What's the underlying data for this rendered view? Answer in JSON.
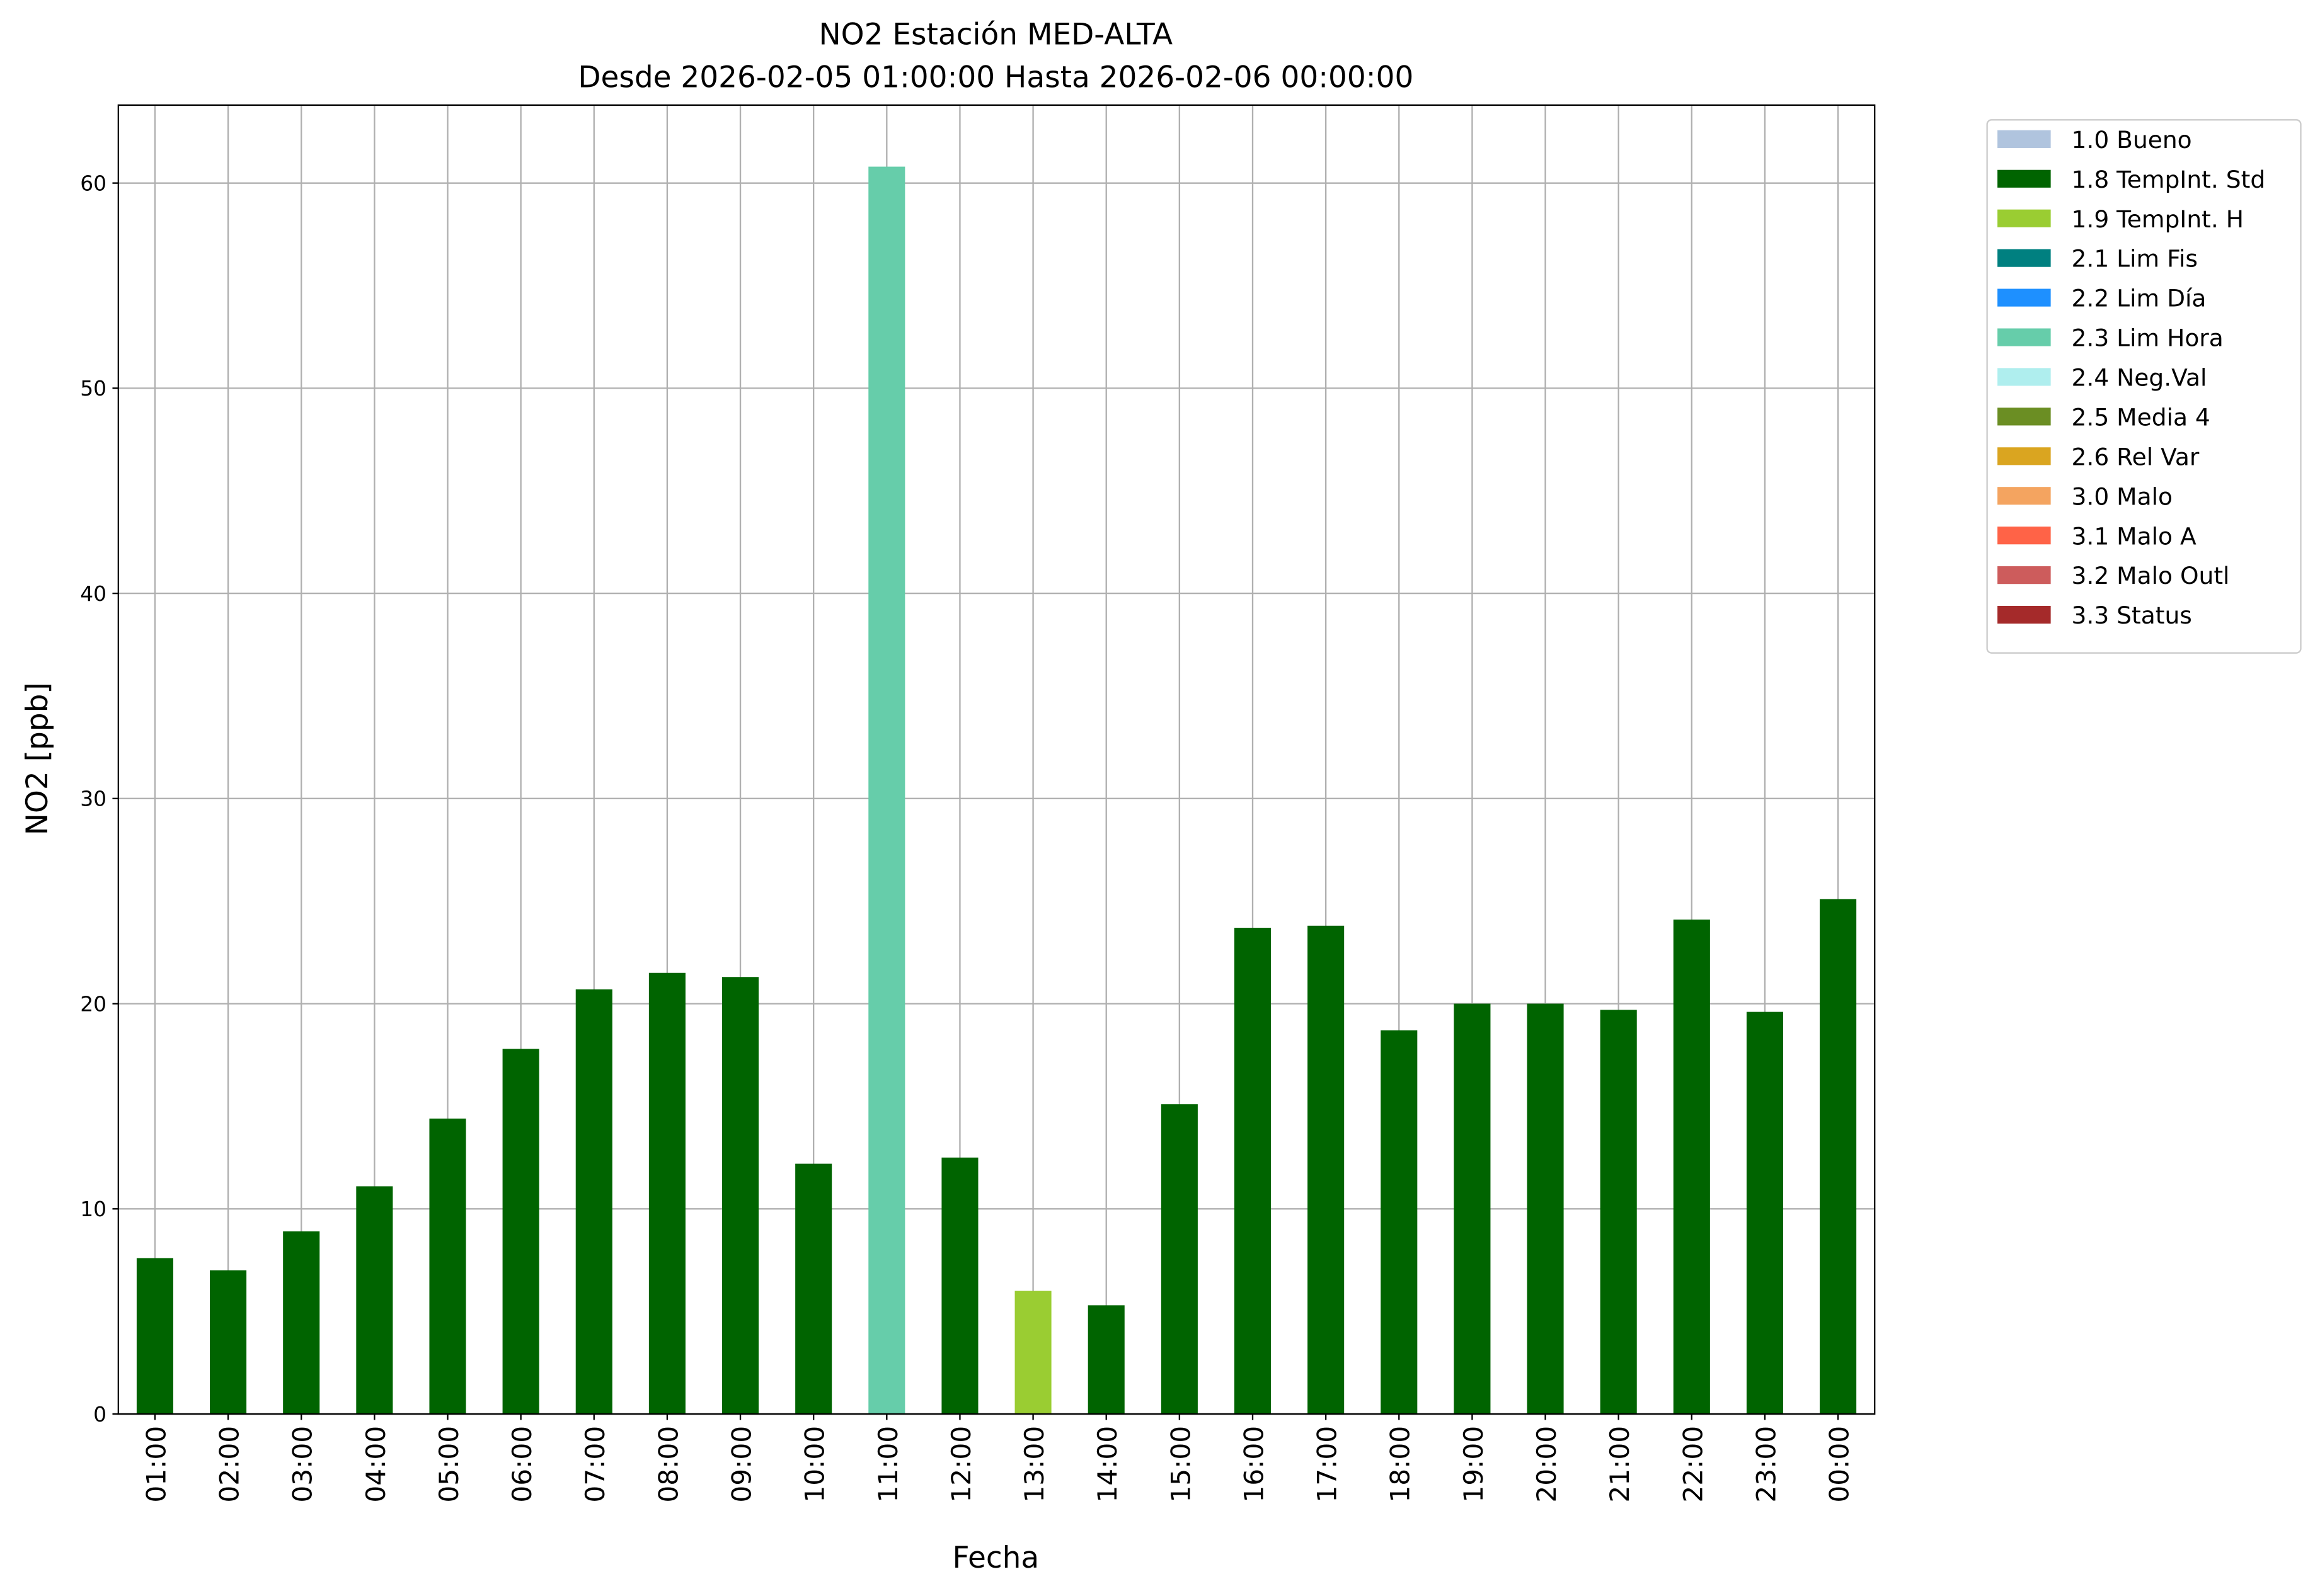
{
  "chart_data": {
    "type": "bar",
    "title": "NO2 Estación MED-ALTA",
    "subtitle": "Desde 2026-02-05 01:00:00 Hasta 2026-02-06 00:00:00",
    "x_label": "Fecha",
    "y_label": "NO2 [ppb]",
    "categories": [
      "01:00",
      "02:00",
      "03:00",
      "04:00",
      "05:00",
      "06:00",
      "07:00",
      "08:00",
      "09:00",
      "10:00",
      "11:00",
      "12:00",
      "13:00",
      "14:00",
      "15:00",
      "16:00",
      "17:00",
      "18:00",
      "19:00",
      "20:00",
      "21:00",
      "22:00",
      "23:00",
      "00:00"
    ],
    "series": [
      {
        "name": "1.0 Bueno",
        "color": "#b0c4de",
        "values": [
          null,
          null,
          null,
          null,
          null,
          null,
          null,
          null,
          null,
          null,
          null,
          null,
          null,
          null,
          null,
          null,
          null,
          null,
          null,
          null,
          null,
          null,
          null,
          null
        ]
      },
      {
        "name": "1.8 TempInt. Std",
        "color": "#006400",
        "values": [
          7.6,
          7.0,
          8.9,
          11.1,
          14.4,
          17.8,
          20.7,
          21.5,
          21.3,
          12.2,
          null,
          12.5,
          null,
          5.3,
          15.1,
          23.7,
          23.8,
          18.7,
          20.0,
          20.0,
          19.7,
          24.1,
          19.6,
          25.1
        ]
      },
      {
        "name": "1.9 TempInt. H",
        "color": "#9acd32",
        "values": [
          null,
          null,
          null,
          null,
          null,
          null,
          null,
          null,
          null,
          null,
          null,
          null,
          6.0,
          null,
          null,
          null,
          null,
          null,
          null,
          null,
          null,
          null,
          null,
          null
        ]
      },
      {
        "name": "2.1 Lim Fis",
        "color": "#008080",
        "values": [
          null,
          null,
          null,
          null,
          null,
          null,
          null,
          null,
          null,
          null,
          null,
          null,
          null,
          null,
          null,
          null,
          null,
          null,
          null,
          null,
          null,
          null,
          null,
          null
        ]
      },
      {
        "name": "2.2 Lim Día",
        "color": "#1e90ff",
        "values": [
          null,
          null,
          null,
          null,
          null,
          null,
          null,
          null,
          null,
          null,
          null,
          null,
          null,
          null,
          null,
          null,
          null,
          null,
          null,
          null,
          null,
          null,
          null,
          null
        ]
      },
      {
        "name": "2.3 Lim Hora",
        "color": "#66cdaa",
        "values": [
          null,
          null,
          null,
          null,
          null,
          null,
          null,
          null,
          null,
          null,
          60.8,
          null,
          null,
          null,
          null,
          null,
          null,
          null,
          null,
          null,
          null,
          null,
          null,
          null
        ]
      },
      {
        "name": "2.4 Neg.Val",
        "color": "#afeeee",
        "values": [
          null,
          null,
          null,
          null,
          null,
          null,
          null,
          null,
          null,
          null,
          null,
          null,
          null,
          null,
          null,
          null,
          null,
          null,
          null,
          null,
          null,
          null,
          null,
          null
        ]
      },
      {
        "name": "2.5 Media 4",
        "color": "#6b8e23",
        "values": [
          null,
          null,
          null,
          null,
          null,
          null,
          null,
          null,
          null,
          null,
          null,
          null,
          null,
          null,
          null,
          null,
          null,
          null,
          null,
          null,
          null,
          null,
          null,
          null
        ]
      },
      {
        "name": "2.6 Rel Var",
        "color": "#daa520",
        "values": [
          null,
          null,
          null,
          null,
          null,
          null,
          null,
          null,
          null,
          null,
          null,
          null,
          null,
          null,
          null,
          null,
          null,
          null,
          null,
          null,
          null,
          null,
          null,
          null
        ]
      },
      {
        "name": "3.0 Malo",
        "color": "#f4a460",
        "values": [
          null,
          null,
          null,
          null,
          null,
          null,
          null,
          null,
          null,
          null,
          null,
          null,
          null,
          null,
          null,
          null,
          null,
          null,
          null,
          null,
          null,
          null,
          null,
          null
        ]
      },
      {
        "name": "3.1 Malo A",
        "color": "#ff6347",
        "values": [
          null,
          null,
          null,
          null,
          null,
          null,
          null,
          null,
          null,
          null,
          null,
          null,
          null,
          null,
          null,
          null,
          null,
          null,
          null,
          null,
          null,
          null,
          null,
          null
        ]
      },
      {
        "name": "3.2 Malo Outl",
        "color": "#cd5c5c",
        "values": [
          null,
          null,
          null,
          null,
          null,
          null,
          null,
          null,
          null,
          null,
          null,
          null,
          null,
          null,
          null,
          null,
          null,
          null,
          null,
          null,
          null,
          null,
          null,
          null
        ]
      },
      {
        "name": "3.3 Status",
        "color": "#a52a2a",
        "values": [
          null,
          null,
          null,
          null,
          null,
          null,
          null,
          null,
          null,
          null,
          null,
          null,
          null,
          null,
          null,
          null,
          null,
          null,
          null,
          null,
          null,
          null,
          null,
          null
        ]
      }
    ],
    "ylim": [
      0,
      63.8
    ],
    "yticks": [
      0,
      10,
      20,
      30,
      40,
      50,
      60
    ],
    "grid": true,
    "legend": "outside-right"
  }
}
